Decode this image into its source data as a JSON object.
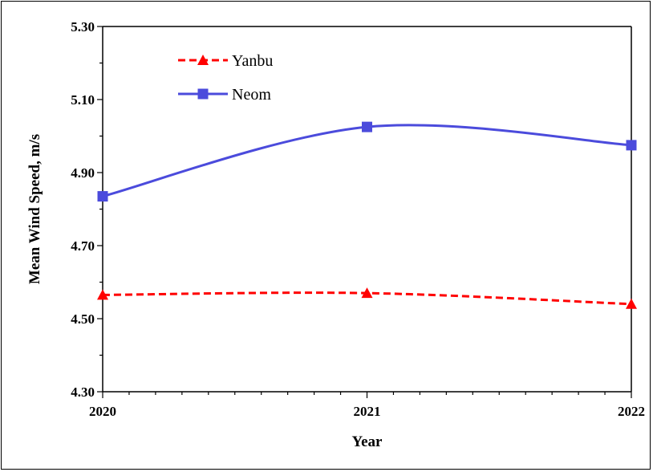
{
  "chart_data": {
    "type": "line",
    "title": "",
    "xlabel": "Year",
    "ylabel": "Mean Wind Speed, m/s",
    "x": [
      2020,
      2021,
      2022
    ],
    "x_tick_labels": [
      "2020",
      "2021",
      "2022"
    ],
    "ylim": [
      4.3,
      5.3
    ],
    "y_tick_labels": [
      "4.30",
      "4.50",
      "4.70",
      "4.90",
      "5.10",
      "5.30"
    ],
    "grid": false,
    "legend_position": "top-left",
    "series": [
      {
        "name": "Yanbu",
        "values": [
          4.565,
          4.57,
          4.54
        ],
        "color": "#ff0000",
        "line_style": "dashed",
        "marker": "triangle"
      },
      {
        "name": "Neom",
        "values": [
          4.835,
          5.025,
          4.975
        ],
        "color": "#4b4bdc",
        "line_style": "solid",
        "marker": "square"
      }
    ]
  }
}
